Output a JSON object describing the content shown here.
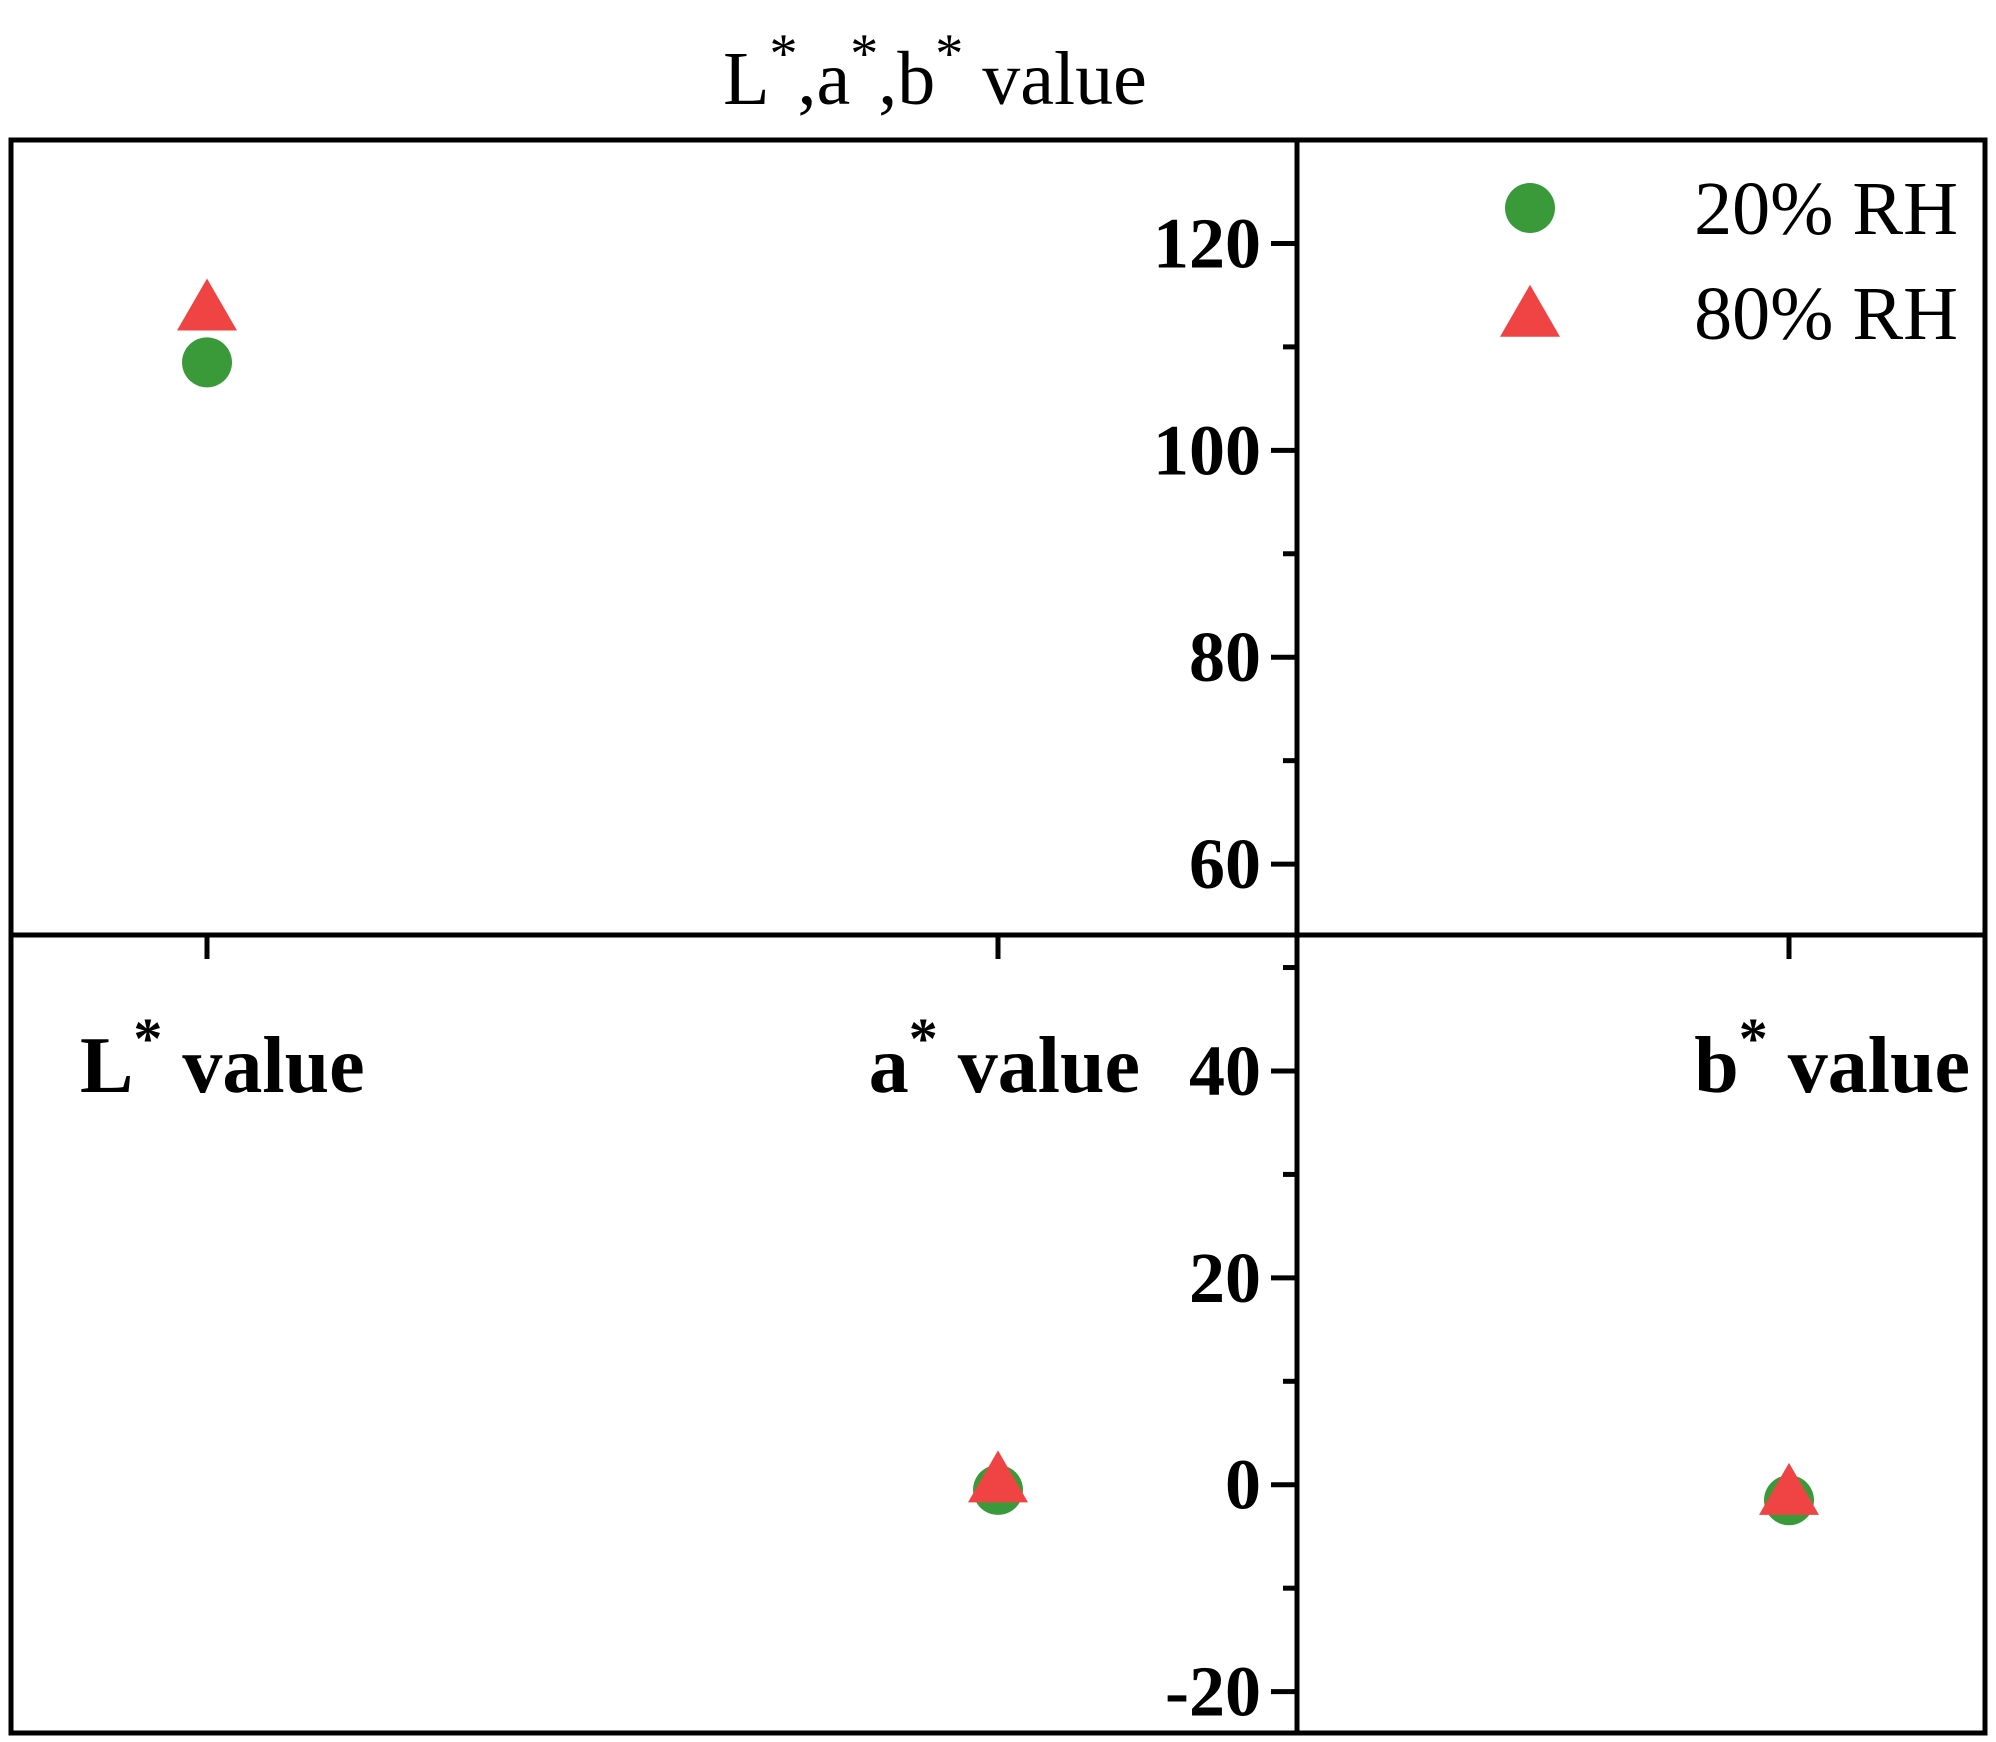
{
  "chart_data": {
    "type": "scatter",
    "title_parts": [
      "L",
      "*",
      ",a",
      "*",
      ",b",
      "*",
      " value"
    ],
    "categories": [
      {
        "letter": "L",
        "sup": "*",
        "suffix": " value"
      },
      {
        "letter": "a",
        "sup": "*",
        "suffix": " value"
      },
      {
        "letter": "b",
        "sup": "*",
        "suffix": " value"
      }
    ],
    "series": [
      {
        "name": "20% RH",
        "marker": "circle",
        "color": "#3a9a3a",
        "values": [
          108.5,
          -0.5,
          -1.5
        ]
      },
      {
        "name": "80% RH",
        "marker": "triangle",
        "color": "#f04444",
        "values": [
          113.5,
          0.2,
          -1.0
        ]
      }
    ],
    "ylim": [
      -24,
      130
    ],
    "y_ticks": [
      -20,
      0,
      20,
      40,
      60,
      80,
      100,
      120
    ],
    "y_tick_labels": [
      "-20",
      "0",
      "20",
      "40",
      "60",
      "80",
      "100",
      "120"
    ],
    "legend_position": "top-right",
    "grid": false
  }
}
